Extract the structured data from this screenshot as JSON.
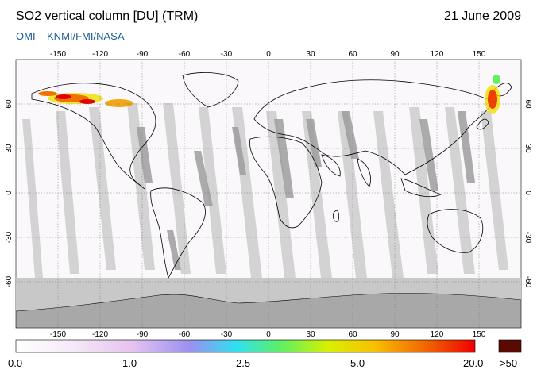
{
  "header": {
    "title": "SO2 vertical column [DU] (TRM)",
    "date": "21 June 2009",
    "subtitle": "OMI  –  KNMI/FMI/NASA"
  },
  "map": {
    "lon_ticks": [
      "-150",
      "-120",
      "-90",
      "-60",
      "-30",
      "0",
      "30",
      "60",
      "90",
      "120",
      "150"
    ],
    "lat_ticks": [
      "60",
      "30",
      "0",
      "-30",
      "-60"
    ],
    "overlay_colors": {
      "swath_light": "#cfcfcf",
      "swath_dark": "#a8a8a8",
      "land": "#e6e6e6"
    }
  },
  "colorbar": {
    "labels": [
      "0.0",
      "1.0",
      "2.5",
      "5.0",
      "20.0"
    ],
    "overflow_label": ">50",
    "overflow_color": "#5a0a00",
    "colors": [
      "#ffffff",
      "#f4e8f8",
      "#e8c8f0",
      "#c8b0f0",
      "#8890f0",
      "#40d8f0",
      "#60f060",
      "#d8f000",
      "#f8c000",
      "#f07000",
      "#f01010"
    ]
  }
}
